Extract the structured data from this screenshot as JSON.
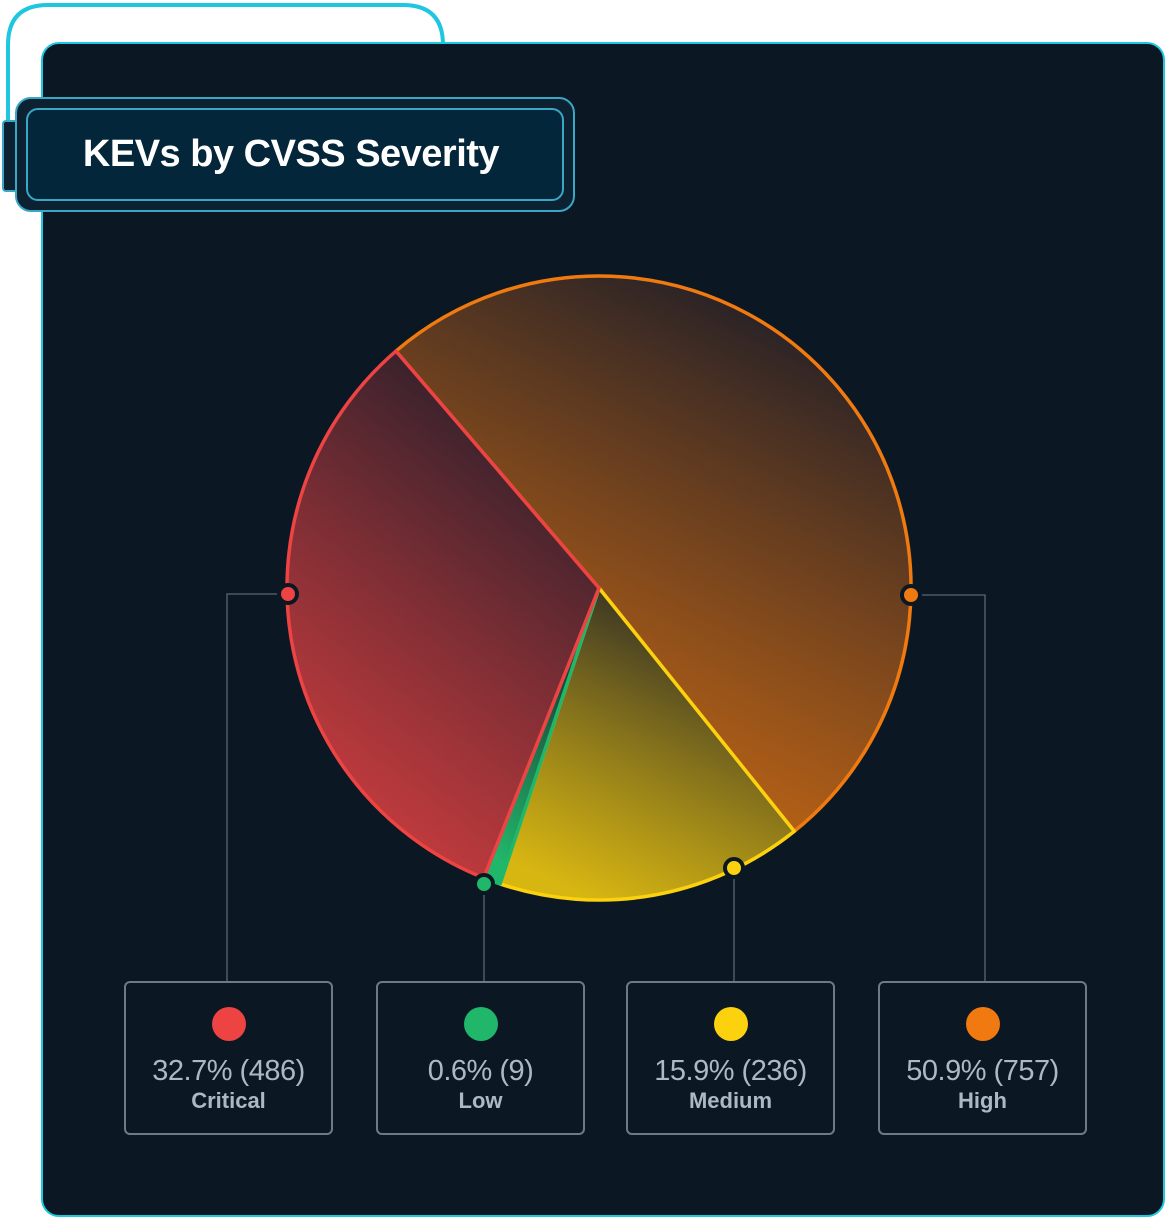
{
  "title": "KEVs by CVSS Severity",
  "chart_data": {
    "type": "pie",
    "title": "KEVs by CVSS Severity",
    "start_angle_deg": -40.6,
    "direction": "clockwise",
    "slices": [
      {
        "label": "High",
        "percent": 50.9,
        "count": 757,
        "color": "#f07a10",
        "display": "50.9% (757)"
      },
      {
        "label": "Medium",
        "percent": 15.9,
        "count": 236,
        "color": "#fcd20f",
        "display": "15.9% (236)"
      },
      {
        "label": "Low",
        "percent": 0.6,
        "count": 9,
        "color": "#21b76a",
        "display": "0.6% (9)"
      },
      {
        "label": "Critical",
        "percent": 32.7,
        "count": 486,
        "color": "#ee4343",
        "display": "32.7% (486)"
      }
    ],
    "legend_order": [
      "Critical",
      "Low",
      "Medium",
      "High"
    ],
    "legend_placement": "bottom"
  }
}
